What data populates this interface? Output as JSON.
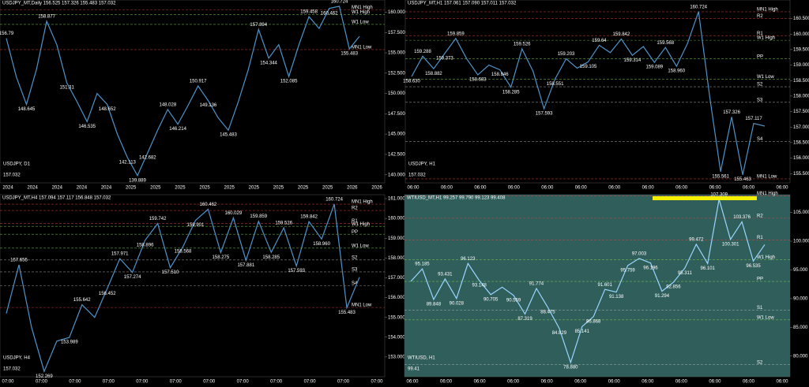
{
  "panels": [
    {
      "header": "USDJPY_MT,Daily  156.525 157.326 155.483 157.032",
      "symbol": "USDJPY, D1",
      "price": "157.032",
      "price_color": "#ffffff",
      "bg": "#000000",
      "line_color": "#4f93c9",
      "ylim": [
        139,
        161.5
      ],
      "yticks": [
        {
          "value": 160,
          "label": "160.000"
        },
        {
          "value": 157.5,
          "label": "157.500"
        },
        {
          "value": 155,
          "label": "155.000"
        },
        {
          "value": 152.5,
          "label": "152.500"
        },
        {
          "value": 150,
          "label": "150.000"
        },
        {
          "value": 147.5,
          "label": "147.500"
        },
        {
          "value": 145,
          "label": "145.000"
        },
        {
          "value": 142.5,
          "label": "142.500"
        },
        {
          "value": 140,
          "label": "140.000"
        }
      ],
      "xticks": [
        "2024",
        "2024",
        "2024",
        "2024",
        "2024",
        "2025",
        "2025",
        "2025",
        "2025",
        "2025",
        "2025",
        "2025",
        "2025",
        "2025",
        "2026",
        "2026"
      ],
      "close": [
        156.79,
        152,
        148.645,
        153,
        158.877,
        156,
        151.31,
        149,
        146.535,
        150,
        148.652,
        145,
        142.113,
        139.889,
        142.682,
        145.5,
        148.028,
        146.214,
        148.5,
        150.917,
        149.136,
        147,
        145.483,
        149,
        153,
        157.894,
        154.344,
        156,
        152.085,
        156,
        159.458,
        158,
        160.462,
        160.724,
        155.483,
        157.032
      ],
      "annotations": [
        156.79,
        148.645,
        158.877,
        151.31,
        146.535,
        148.652,
        142.113,
        139.889,
        142.682,
        148.028,
        146.214,
        150.917,
        149.136,
        145.483,
        157.894,
        154.344,
        152.085,
        159.458,
        160.462,
        160.724,
        155.483
      ],
      "levels": [
        {
          "name": "MN1 High",
          "value": 160.3,
          "color": "#e04040"
        },
        {
          "name": "W1 High",
          "value": 159.7,
          "color": "#7fd04a"
        },
        {
          "name": "W1 Low",
          "value": 158.5,
          "color": "#7fd04a"
        },
        {
          "name": "MN1 Low",
          "value": 155.4,
          "color": "#e04040"
        }
      ]
    },
    {
      "header": "USDJPY_MT,H1  157.061 157.090 157.011 157.032",
      "symbol": "USDJPY, H1",
      "price": "157.032",
      "price_color": "#3c8fe0",
      "bg": "#000000",
      "line_color": "#4f93c9",
      "ylim": [
        155.2,
        161.1
      ],
      "yticks": [
        {
          "value": 160.5,
          "label": "160.500"
        },
        {
          "value": 160,
          "label": "160.000"
        },
        {
          "value": 159.5,
          "label": "159.500"
        },
        {
          "value": 159,
          "label": "159.000"
        },
        {
          "value": 158.5,
          "label": "158.500"
        },
        {
          "value": 158,
          "label": "158.000"
        },
        {
          "value": 157.5,
          "label": "157.500"
        },
        {
          "value": 157,
          "label": "157.000"
        },
        {
          "value": 156.5,
          "label": "156.500"
        },
        {
          "value": 156,
          "label": "156.000"
        },
        {
          "value": 155.5,
          "label": "155.500"
        }
      ],
      "xticks": [
        "06:00",
        "06:00",
        "06:00",
        "06:00",
        "06:00",
        "06:00",
        "06:00",
        "06:00",
        "06:00",
        "06:00",
        "06:00",
        "06:00"
      ],
      "close": [
        158.63,
        159.288,
        158.882,
        159.373,
        159.859,
        159.2,
        158.683,
        159,
        158.846,
        158.285,
        159.526,
        158.8,
        157.593,
        158.551,
        159.203,
        158.9,
        159.105,
        159.64,
        159.4,
        159.842,
        159.314,
        159.6,
        159.089,
        159.568,
        158.96,
        159.7,
        160.724,
        158,
        155.561,
        157.326,
        155.463,
        157.117,
        157.032
      ],
      "annotations": [
        {
          "value": 158.63,
          "label": "158.630"
        },
        159.288,
        158.882,
        159.373,
        159.859,
        158.683,
        158.846,
        158.285,
        159.526,
        157.593,
        158.551,
        159.203,
        159.105,
        159.64,
        159.842,
        159.314,
        159.089,
        159.568,
        {
          "value": 158.96,
          "label": "158.960"
        },
        160.724,
        155.561,
        157.326,
        155.463,
        157.117
      ],
      "levels": [
        {
          "name": "MN1 High",
          "value": 160.72,
          "color": "#e04040"
        },
        {
          "name": "R2",
          "value": 160.5,
          "color": "#e04040"
        },
        {
          "name": "R1",
          "value": 159.95,
          "color": "#e04040"
        },
        {
          "name": "W1 High",
          "value": 159.8,
          "color": "#7fd04a"
        },
        {
          "name": "PP",
          "value": 159.2,
          "color": "#7fd04a"
        },
        {
          "name": "W1 Low",
          "value": 158.54,
          "color": "#7fd04a"
        },
        {
          "name": "S2",
          "value": 158.3,
          "color": "#aaaaaa"
        },
        {
          "name": "S3",
          "value": 157.8,
          "color": "#aaaaaa"
        },
        {
          "name": "S4",
          "value": 156.54,
          "color": "#aaaaaa"
        },
        {
          "name": "MN1 Low",
          "value": 155.33,
          "color": "#e04040"
        }
      ]
    },
    {
      "header": "USDJPY_MT,H4  157.094 157.117 156.848 157.032",
      "symbol": "USDJPY, H4",
      "price": "157.032",
      "price_color": "#f0c020",
      "bg": "#000000",
      "line_color": "#4f93c9",
      "ylim": [
        152,
        161.2
      ],
      "yticks": [
        {
          "value": 161,
          "label": "161.000"
        },
        {
          "value": 160,
          "label": "160.000"
        },
        {
          "value": 159,
          "label": "159.000"
        },
        {
          "value": 158,
          "label": "158.000"
        },
        {
          "value": 157,
          "label": "157.000"
        },
        {
          "value": 156,
          "label": "156.000"
        },
        {
          "value": 155,
          "label": "155.000"
        },
        {
          "value": 154,
          "label": "154.000"
        },
        {
          "value": 153,
          "label": "153.000"
        }
      ],
      "xticks": [
        "07:00",
        "07:00",
        "07:00",
        "07:00",
        "07:00",
        "07:00",
        "07:00",
        "07:00",
        "07:00",
        "07:00",
        "07:00",
        "07:00"
      ],
      "close": [
        155.2,
        157.655,
        154.5,
        152.269,
        153.8,
        153.989,
        155.642,
        155,
        156.452,
        157.971,
        157.274,
        158.896,
        159.742,
        157.51,
        158.568,
        159.901,
        160.462,
        158.275,
        160.029,
        157.881,
        159.859,
        158.285,
        159.526,
        157.593,
        159.842,
        158.96,
        160.724,
        155.483,
        157.032
      ],
      "annotations": [
        157.655,
        152.269,
        153.989,
        155.642,
        156.452,
        157.971,
        157.274,
        158.896,
        159.742,
        {
          "value": 157.51,
          "label": "157.510"
        },
        158.568,
        159.901,
        160.462,
        158.275,
        160.029,
        157.881,
        159.859,
        158.285,
        159.526,
        157.593,
        159.842,
        {
          "value": 158.96,
          "label": "158.960"
        },
        160.724,
        155.483
      ],
      "levels": [
        {
          "name": "MN1 High",
          "value": 160.72,
          "color": "#e04040"
        },
        {
          "name": "R2",
          "value": 160.4,
          "color": "#e04040"
        },
        {
          "name": "R1",
          "value": 159.75,
          "color": "#e04040"
        },
        {
          "name": "W1 High",
          "value": 159.6,
          "color": "#7fd04a"
        },
        {
          "name": "PP",
          "value": 159.2,
          "color": "#7fd04a"
        },
        {
          "name": "W1 Low",
          "value": 158.5,
          "color": "#7fd04a"
        },
        {
          "name": "S2",
          "value": 157.9,
          "color": "#aaaaaa"
        },
        {
          "name": "S3",
          "value": 157.3,
          "color": "#aaaaaa"
        },
        {
          "name": "S4",
          "value": 156.6,
          "color": "#aaaaaa"
        },
        {
          "name": "MN1 Low",
          "value": 155.5,
          "color": "#e04040"
        }
      ]
    },
    {
      "header": "WTIUSD_MT,H1  99.257 99.790 99.123 99.408",
      "symbol": "WTIUSD, H1",
      "price": "99.41",
      "price_color": "#ffffff",
      "bg": "#2f5e5b",
      "line_color": "#9ad6ff",
      "ylim": [
        76.4,
        108.1
      ],
      "yticks": [
        {
          "value": 105,
          "label": "105.000"
        },
        {
          "value": 100,
          "label": "100.000"
        },
        {
          "value": 95,
          "label": "95.000"
        },
        {
          "value": 90,
          "label": "90.000"
        },
        {
          "value": 85,
          "label": "85.000"
        },
        {
          "value": 80,
          "label": "80.000"
        }
      ],
      "xticks": [
        "06:00",
        "06:00",
        "06:00",
        "06:00",
        "06:00",
        "06:00",
        "06:00",
        "06:00",
        "06:00",
        "06:00",
        "06:00",
        "06:00"
      ],
      "close": [
        93,
        95.185,
        89.848,
        93.431,
        90.028,
        96.123,
        93.148,
        90.705,
        92,
        90.559,
        87.319,
        91.774,
        88.475,
        84.829,
        78.88,
        85.141,
        86.868,
        91.601,
        91.138,
        95.759,
        97.003,
        96.196,
        91.294,
        92.856,
        95.311,
        99.472,
        96.101,
        107.309,
        100.301,
        103.376,
        96.535,
        99.41
      ],
      "annotations": [
        95.185,
        89.848,
        93.431,
        90.028,
        96.123,
        93.148,
        90.705,
        90.559,
        87.319,
        91.774,
        88.475,
        84.829,
        {
          "value": 78.88,
          "label": "78.880"
        },
        85.141,
        86.868,
        91.601,
        91.138,
        95.759,
        97.003,
        96.196,
        91.294,
        92.856,
        95.311,
        99.472,
        96.101,
        107.309,
        100.301,
        103.376,
        96.535
      ],
      "levels": [
        {
          "name": "MN1 High",
          "value": 107.9,
          "color": "#e04040"
        },
        {
          "name": "R2",
          "value": 104,
          "color": "#e04040"
        },
        {
          "name": "R1",
          "value": 100.2,
          "color": "#e04040"
        },
        {
          "name": "W1 High",
          "value": 96.8,
          "color": "#7fd04a"
        },
        {
          "name": "PP",
          "value": 93,
          "color": "#7fd04a"
        },
        {
          "name": "S1",
          "value": 88,
          "color": "#aaaaaa"
        },
        {
          "name": "W1 Low",
          "value": 86.3,
          "color": "#7fd04a"
        },
        {
          "name": "S2",
          "value": 78.5,
          "color": "#aaaaaa"
        }
      ]
    }
  ]
}
